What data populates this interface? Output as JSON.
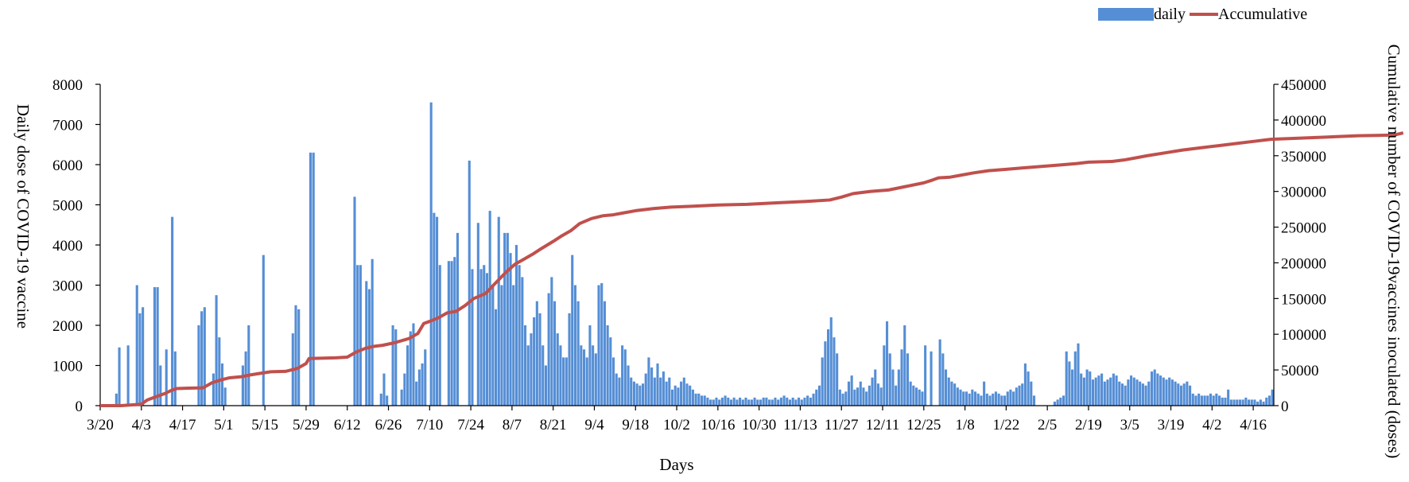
{
  "chart_data": {
    "type": "bar+line",
    "xlabel": "Days",
    "ylabel_left": "Daily dose of COVID-19 vaccine",
    "ylabel_right": "Cumulative number of COVID-19vaccines inoculated  (doses)",
    "legend": {
      "position": "top-right",
      "entries": [
        "daily",
        "Accumulative"
      ]
    },
    "colors": {
      "daily": "#558ED5",
      "accumulative": "#C0504D"
    },
    "x_tick_labels": [
      "3/20",
      "4/3",
      "4/17",
      "5/1",
      "5/15",
      "5/29",
      "6/12",
      "6/26",
      "7/10",
      "7/24",
      "8/7",
      "8/21",
      "9/4",
      "9/18",
      "10/2",
      "10/16",
      "10/30",
      "11/13",
      "11/27",
      "12/11",
      "12/25",
      "1/8",
      "1/22",
      "2/5",
      "2/19",
      "3/5",
      "3/19",
      "4/2",
      "4/16"
    ],
    "tick_interval_days": 14,
    "y_left": {
      "min": 0,
      "max": 8000,
      "step": 1000,
      "ticks": [
        "0",
        "1000",
        "2000",
        "3000",
        "4000",
        "5000",
        "6000",
        "7000",
        "8000"
      ]
    },
    "y_right": {
      "min": 0,
      "max": 450000,
      "step": 50000,
      "ticks": [
        "0",
        "50000",
        "100000",
        "150000",
        "200000",
        "250000",
        "300000",
        "350000",
        "400000",
        "450000"
      ]
    },
    "grid": false,
    "series": [
      {
        "name": "daily",
        "type": "bar",
        "axis": "left",
        "approximate_values_by_week_from_3/20": [
          [
            0,
            0,
            0,
            0,
            0,
            300,
            1450
          ],
          [
            0,
            0,
            1500,
            0,
            0,
            3000,
            2300
          ],
          [
            2450,
            0,
            0,
            0,
            2950,
            2950,
            1000
          ],
          [
            0,
            1400,
            0,
            4700,
            1350,
            0,
            0
          ],
          [
            0,
            0,
            0,
            0,
            0,
            2000,
            2350
          ],
          [
            2450,
            0,
            0,
            800,
            2750,
            1700,
            1050
          ],
          [
            450,
            0,
            0,
            0,
            0,
            0,
            1000
          ],
          [
            1350,
            2000,
            0,
            0,
            0,
            0,
            3750
          ],
          [
            0,
            0,
            0,
            0,
            0,
            0,
            0
          ],
          [
            0,
            0,
            1800,
            2500,
            2400,
            0,
            0
          ],
          [
            0,
            6300,
            6300,
            0,
            0,
            0,
            0
          ],
          [
            0,
            0,
            0,
            0,
            0,
            0,
            0
          ],
          [
            0,
            0,
            5200,
            3500,
            3500,
            0,
            3100
          ],
          [
            2900,
            3650,
            0,
            0,
            300,
            800,
            250
          ],
          [
            0,
            2000,
            1900,
            0,
            400,
            800,
            1500
          ],
          [
            1850,
            2050,
            600,
            900,
            1050,
            1400,
            0
          ],
          [
            7550,
            4800,
            4700,
            3500,
            0,
            0,
            3600
          ],
          [
            3600,
            3700,
            4300,
            0,
            0,
            0,
            6100
          ],
          [
            3400,
            0,
            4550,
            3400,
            3500,
            3300,
            4850
          ],
          [
            3000,
            2400,
            4700,
            3000,
            4300,
            4300,
            3800
          ],
          [
            3000,
            4000,
            3500,
            3200,
            2000,
            1500,
            1800
          ],
          [
            2200,
            2600,
            2300,
            1500,
            1000,
            2800,
            3200
          ],
          [
            2600,
            1800,
            1500,
            1200,
            1200,
            2300,
            3750
          ],
          [
            3000,
            2600,
            1500,
            1400,
            1200,
            2000,
            1500
          ],
          [
            1300,
            3000,
            3050,
            2600,
            2000,
            1700,
            1200
          ],
          [
            800,
            700,
            1500,
            1400,
            1000,
            700,
            600
          ],
          [
            550,
            500,
            550,
            800,
            1200,
            950,
            700
          ],
          [
            1050,
            700,
            850,
            600,
            700,
            400,
            500
          ],
          [
            450,
            600,
            700,
            550,
            500,
            400,
            300
          ],
          [
            300,
            250,
            250,
            200,
            150,
            150,
            200
          ],
          [
            150,
            200,
            250,
            200,
            150,
            200,
            150
          ],
          [
            200,
            150,
            200,
            150,
            150,
            200,
            150
          ],
          [
            150,
            200,
            200,
            150,
            150,
            200,
            150
          ],
          [
            200,
            250,
            200,
            150,
            200,
            150,
            200
          ],
          [
            150,
            200,
            250,
            200,
            300,
            400,
            500
          ],
          [
            1200,
            1600,
            1900,
            2200,
            1700,
            1300,
            400
          ],
          [
            300,
            350,
            600,
            750,
            400,
            450,
            600
          ],
          [
            450,
            350,
            500,
            700,
            900,
            550,
            450
          ],
          [
            1500,
            2100,
            1300,
            900,
            500,
            900,
            1400
          ],
          [
            2000,
            1300,
            600,
            500,
            450,
            400,
            350
          ],
          [
            1500,
            0,
            1350,
            0,
            0,
            1650,
            1300
          ],
          [
            900,
            700,
            600,
            550,
            450,
            400,
            350
          ],
          [
            350,
            300,
            400,
            350,
            300,
            250,
            600
          ],
          [
            300,
            250,
            300,
            350,
            300,
            250,
            250
          ],
          [
            350,
            400,
            350,
            450,
            500,
            550,
            1050
          ],
          [
            850,
            600,
            250,
            0,
            0,
            0,
            0
          ],
          [
            0,
            0,
            100,
            150,
            200,
            250,
            1350
          ],
          [
            1100,
            900,
            1350,
            1550,
            800,
            700,
            900
          ],
          [
            850,
            650,
            700,
            750,
            800,
            600,
            650
          ],
          [
            700,
            800,
            750,
            600,
            550,
            500,
            650
          ],
          [
            750,
            700,
            650,
            600,
            550,
            500,
            600
          ],
          [
            850,
            900,
            800,
            750,
            700,
            650,
            700
          ],
          [
            650,
            600,
            550,
            500,
            550,
            600,
            500
          ],
          [
            300,
            250,
            300,
            250,
            250,
            250,
            300
          ],
          [
            250,
            300,
            250,
            200,
            200,
            400,
            150
          ],
          [
            150,
            150,
            150,
            150,
            200,
            150,
            150
          ],
          [
            150,
            100,
            150,
            100,
            200,
            250,
            400
          ]
        ]
      },
      {
        "name": "Accumulative",
        "type": "line",
        "axis": "right",
        "approximate_points_day_value": [
          [
            0,
            0
          ],
          [
            7,
            0
          ],
          [
            14,
            2000
          ],
          [
            16,
            8000
          ],
          [
            18,
            11000
          ],
          [
            20,
            14000
          ],
          [
            22,
            17000
          ],
          [
            24,
            21000
          ],
          [
            26,
            24000
          ],
          [
            30,
            24500
          ],
          [
            35,
            25000
          ],
          [
            38,
            32000
          ],
          [
            41,
            36000
          ],
          [
            44,
            39000
          ],
          [
            48,
            40500
          ],
          [
            51,
            43000
          ],
          [
            54,
            45000
          ],
          [
            58,
            47500
          ],
          [
            63,
            48000
          ],
          [
            67,
            52000
          ],
          [
            70,
            59000
          ],
          [
            71,
            66000
          ],
          [
            80,
            67000
          ],
          [
            84,
            68000
          ],
          [
            87,
            75000
          ],
          [
            90,
            80000
          ],
          [
            93,
            83000
          ],
          [
            96,
            84500
          ],
          [
            100,
            88000
          ],
          [
            105,
            94000
          ],
          [
            108,
            101000
          ],
          [
            110,
            115000
          ],
          [
            112,
            118000
          ],
          [
            115,
            123000
          ],
          [
            118,
            130000
          ],
          [
            121,
            132000
          ],
          [
            124,
            140000
          ],
          [
            127,
            150000
          ],
          [
            131,
            157000
          ],
          [
            134,
            170000
          ],
          [
            138,
            187000
          ],
          [
            141,
            198000
          ],
          [
            144,
            205000
          ],
          [
            147,
            212000
          ],
          [
            150,
            220000
          ],
          [
            154,
            230000
          ],
          [
            157,
            238000
          ],
          [
            160,
            245000
          ],
          [
            163,
            255000
          ],
          [
            167,
            262000
          ],
          [
            171,
            266000
          ],
          [
            174,
            267000
          ],
          [
            178,
            270000
          ],
          [
            182,
            273000
          ],
          [
            188,
            276000
          ],
          [
            194,
            278000
          ],
          [
            200,
            279000
          ],
          [
            210,
            281000
          ],
          [
            220,
            282000
          ],
          [
            230,
            284000
          ],
          [
            240,
            286000
          ],
          [
            248,
            288000
          ],
          [
            252,
            292000
          ],
          [
            256,
            297000
          ],
          [
            262,
            300000
          ],
          [
            268,
            302000
          ],
          [
            274,
            307000
          ],
          [
            280,
            312000
          ],
          [
            283,
            316000
          ],
          [
            285,
            319000
          ],
          [
            289,
            320000
          ],
          [
            293,
            323000
          ],
          [
            297,
            326000
          ],
          [
            302,
            329000
          ],
          [
            308,
            331000
          ],
          [
            314,
            333000
          ],
          [
            320,
            335000
          ],
          [
            326,
            337000
          ],
          [
            332,
            339000
          ],
          [
            336,
            341000
          ],
          [
            344,
            342000
          ],
          [
            348,
            344000
          ],
          [
            352,
            347000
          ],
          [
            356,
            350000
          ],
          [
            362,
            354000
          ],
          [
            368,
            358000
          ],
          [
            374,
            361000
          ],
          [
            380,
            364000
          ],
          [
            386,
            367000
          ],
          [
            392,
            370000
          ],
          [
            398,
            373000
          ],
          [
            404,
            374000
          ],
          [
            410,
            375000
          ],
          [
            416,
            376000
          ],
          [
            422,
            377000
          ],
          [
            428,
            378000
          ],
          [
            434,
            378500
          ],
          [
            440,
            379000
          ],
          [
            443,
            382000
          ]
        ]
      }
    ]
  }
}
